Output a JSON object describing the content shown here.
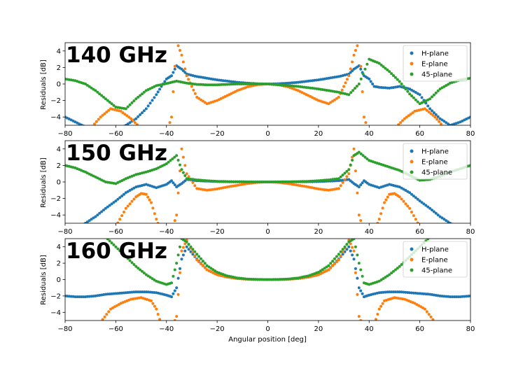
{
  "chart_data": [
    {
      "type": "scatter",
      "title": "140 GHz",
      "ylabel": "Residuals [dB]",
      "xlabel": "",
      "xlim": [
        -80,
        80
      ],
      "ylim": [
        -5,
        5
      ],
      "xticks": [
        "−80",
        "−60",
        "−40",
        "−20",
        "0",
        "20",
        "40",
        "60",
        "80"
      ],
      "yticks": [
        "−4",
        "−2",
        "0",
        "2",
        "4"
      ],
      "legend_position": "top-right",
      "series": [
        {
          "name": "H-plane",
          "color": "#1f77b4",
          "x": [
            -80,
            -76,
            -72,
            -68,
            -64,
            -60,
            -56,
            -52,
            -48,
            -44,
            -42,
            -40,
            -38,
            -36,
            -34,
            -32,
            -28,
            -24,
            -20,
            -16,
            -12,
            -8,
            -4,
            0,
            4,
            8,
            12,
            16,
            20,
            24,
            28,
            32,
            34,
            36,
            38,
            40,
            42,
            44,
            48,
            52,
            56,
            60,
            64,
            68,
            72,
            76,
            80
          ],
          "y": [
            -4,
            -4.6,
            -5.2,
            -5.6,
            -5.8,
            -5.6,
            -5.0,
            -4.2,
            -3.0,
            -1.3,
            -0.3,
            0.6,
            1.0,
            2.2,
            1.8,
            1.2,
            0.9,
            0.7,
            0.5,
            0.35,
            0.2,
            0.1,
            0.03,
            0,
            0.03,
            0.1,
            0.2,
            0.35,
            0.5,
            0.7,
            0.9,
            1.2,
            1.8,
            2.2,
            1.0,
            0.6,
            -0.3,
            -0.4,
            -0.5,
            -0.3,
            -0.6,
            -1.3,
            -3.0,
            -4.2,
            -5.0,
            -4.6,
            -4.0
          ]
        },
        {
          "name": "E-plane",
          "color": "#ff7f0e",
          "x": [
            -70,
            -66,
            -62,
            -58,
            -54,
            -50,
            -46,
            -44,
            -42,
            -40,
            -38,
            -36,
            -34,
            -32,
            -30,
            -28,
            -24,
            -20,
            -16,
            -12,
            -8,
            -4,
            0,
            4,
            8,
            12,
            16,
            20,
            24,
            28,
            30,
            32,
            34,
            36,
            38,
            40,
            42,
            44,
            46,
            50,
            54,
            58,
            62,
            66,
            70
          ],
          "y": [
            -5.4,
            -4.0,
            -3.0,
            -3.3,
            -4.2,
            -5.4,
            -6,
            -6,
            -6,
            -6,
            -4.0,
            5.2,
            3.5,
            1.0,
            -0.3,
            -1.6,
            -2.4,
            -2.0,
            -1.4,
            -0.8,
            -0.35,
            -0.08,
            0,
            -0.08,
            -0.35,
            -0.8,
            -1.4,
            -2.0,
            -2.4,
            -1.6,
            -0.3,
            1.0,
            3.5,
            5.2,
            -4.0,
            -6,
            -6,
            -6,
            -6,
            -5.4,
            -4.2,
            -3.3,
            -3.0,
            -4.0,
            -5.4
          ]
        },
        {
          "name": "45-plane",
          "color": "#2ca02c",
          "x": [
            -80,
            -76,
            -72,
            -68,
            -64,
            -60,
            -56,
            -52,
            -48,
            -44,
            -40,
            -36,
            -32,
            -28,
            -24,
            -20,
            -16,
            -12,
            -8,
            -4,
            0,
            4,
            8,
            12,
            16,
            20,
            24,
            28,
            32,
            36,
            40,
            44,
            48,
            52,
            56,
            60,
            64,
            68,
            72,
            76,
            80
          ],
          "y": [
            0.6,
            0.4,
            0,
            -0.8,
            -1.8,
            -2.8,
            -3.0,
            -1.8,
            -0.8,
            -0.2,
            0.05,
            0.35,
            0.1,
            -0.05,
            -0.1,
            -0.1,
            -0.05,
            0,
            0,
            0,
            0,
            -0.1,
            -0.2,
            -0.3,
            -0.45,
            -0.6,
            -0.8,
            -1.0,
            -1.3,
            0,
            3.0,
            2.5,
            1.5,
            0.3,
            -1.2,
            -2.4,
            -1.8,
            -0.6,
            0.1,
            0.5,
            0.7
          ]
        }
      ]
    },
    {
      "type": "scatter",
      "title": "150 GHz",
      "ylabel": "Residuals [dB]",
      "xlabel": "",
      "xlim": [
        -80,
        80
      ],
      "ylim": [
        -5,
        5
      ],
      "xticks": [
        "−80",
        "−60",
        "−40",
        "−20",
        "0",
        "20",
        "40",
        "60",
        "80"
      ],
      "yticks": [
        "−4",
        "−2",
        "0",
        "2",
        "4"
      ],
      "legend_position": "top-right",
      "series": [
        {
          "name": "H-plane",
          "color": "#1f77b4",
          "x": [
            -80,
            -76,
            -72,
            -68,
            -64,
            -60,
            -56,
            -52,
            -48,
            -44,
            -40,
            -38,
            -36,
            -34,
            -32,
            -28,
            -24,
            -20,
            -16,
            -12,
            -8,
            -4,
            0,
            4,
            8,
            12,
            16,
            20,
            24,
            28,
            32,
            34,
            36,
            38,
            40,
            44,
            48,
            52,
            56,
            60,
            64,
            68,
            72,
            76,
            80
          ],
          "y": [
            -6,
            -5.6,
            -5.0,
            -4.2,
            -3.2,
            -2.3,
            -1.3,
            -0.6,
            -0.3,
            -0.7,
            -0.3,
            0.15,
            -0.6,
            -0.2,
            0.3,
            0.15,
            0.1,
            0.05,
            0.03,
            0.02,
            0.01,
            0,
            0,
            0,
            0.01,
            0.02,
            0.03,
            0.05,
            0.1,
            0.15,
            0.3,
            -0.2,
            -0.6,
            0.15,
            -0.3,
            -0.7,
            -0.3,
            -0.6,
            -1.3,
            -2.3,
            -3.2,
            -4.2,
            -5.0,
            -5.6,
            -6
          ]
        },
        {
          "name": "E-plane",
          "color": "#ff7f0e",
          "x": [
            -60,
            -56,
            -52,
            -50,
            -48,
            -46,
            -44,
            -42,
            -40,
            -38,
            -36,
            -34,
            -32,
            -28,
            -24,
            -20,
            -16,
            -12,
            -8,
            -4,
            0,
            4,
            8,
            12,
            16,
            20,
            24,
            28,
            32,
            34,
            36,
            38,
            40,
            42,
            44,
            46,
            48,
            50,
            52,
            56,
            60
          ],
          "y": [
            -5.4,
            -3.2,
            -1.8,
            -1.4,
            -1.5,
            -2.5,
            -4.5,
            -6,
            -6,
            -6,
            -4.0,
            4.0,
            1.0,
            -0.8,
            -1.0,
            -0.85,
            -0.6,
            -0.4,
            -0.2,
            -0.05,
            0,
            -0.05,
            -0.2,
            -0.4,
            -0.6,
            -0.85,
            -1.0,
            -0.8,
            1.0,
            4.0,
            -4.0,
            -6,
            -6,
            -6,
            -4.5,
            -2.5,
            -1.5,
            -1.4,
            -1.8,
            -3.2,
            -5.4
          ]
        },
        {
          "name": "45-plane",
          "color": "#2ca02c",
          "x": [
            -80,
            -76,
            -72,
            -68,
            -64,
            -60,
            -56,
            -52,
            -48,
            -44,
            -40,
            -36,
            -34,
            -32,
            -28,
            -24,
            -20,
            -16,
            -12,
            -8,
            -4,
            0,
            4,
            8,
            12,
            16,
            20,
            24,
            28,
            32,
            34,
            36,
            40,
            44,
            48,
            52,
            56,
            60,
            64,
            68,
            72,
            76,
            80
          ],
          "y": [
            2.0,
            1.7,
            1.2,
            0.6,
            0.0,
            -0.2,
            0.4,
            0.9,
            1.2,
            1.6,
            2.2,
            3.2,
            1.5,
            0.4,
            0.25,
            0.15,
            0.08,
            0.04,
            0.02,
            0.01,
            0,
            0,
            0.01,
            0.02,
            0.04,
            0.08,
            0.15,
            0.25,
            0.4,
            1.5,
            3.2,
            3.6,
            2.6,
            2.2,
            1.8,
            1.4,
            0.8,
            0.2,
            0.3,
            0.7,
            1.2,
            1.6,
            2.0
          ]
        }
      ]
    },
    {
      "type": "scatter",
      "title": "160 GHz",
      "ylabel": "Residuals [dB]",
      "xlabel": "Angular position [deg]",
      "xlim": [
        -80,
        80
      ],
      "ylim": [
        -5,
        5
      ],
      "xticks": [
        "−80",
        "−60",
        "−40",
        "−20",
        "0",
        "20",
        "40",
        "60",
        "80"
      ],
      "yticks": [
        "−4",
        "−2",
        "0",
        "2",
        "4"
      ],
      "legend_position": "top-right",
      "series": [
        {
          "name": "H-plane",
          "color": "#1f77b4",
          "x": [
            -80,
            -76,
            -72,
            -68,
            -64,
            -60,
            -56,
            -52,
            -48,
            -44,
            -40,
            -38,
            -36,
            -34,
            -32,
            -28,
            -24,
            -20,
            -16,
            -12,
            -8,
            -4,
            0,
            4,
            8,
            12,
            16,
            20,
            24,
            28,
            32,
            34,
            36,
            38,
            40,
            44,
            48,
            52,
            56,
            60,
            64,
            68,
            72,
            76,
            80
          ],
          "y": [
            -2.0,
            -2.1,
            -2.1,
            -2.0,
            -1.8,
            -1.7,
            -1.6,
            -1.5,
            -1.5,
            -1.6,
            -1.9,
            -2.1,
            -1.0,
            2.5,
            4.0,
            2.5,
            1.2,
            0.6,
            0.3,
            0.15,
            0.05,
            0.01,
            0,
            0.01,
            0.05,
            0.15,
            0.3,
            0.6,
            1.2,
            2.5,
            4.0,
            2.5,
            -1.0,
            -2.1,
            -1.9,
            -1.6,
            -1.5,
            -1.5,
            -1.6,
            -1.7,
            -1.8,
            -2.0,
            -2.1,
            -2.1,
            -2.0
          ]
        },
        {
          "name": "E-plane",
          "color": "#ff7f0e",
          "x": [
            -66,
            -62,
            -58,
            -54,
            -50,
            -46,
            -44,
            -42,
            -40,
            -38,
            -36,
            -34,
            -32,
            -28,
            -24,
            -20,
            -16,
            -12,
            -8,
            -4,
            0,
            4,
            8,
            12,
            16,
            20,
            24,
            28,
            32,
            34,
            36,
            38,
            40,
            42,
            44,
            46,
            50,
            54,
            58,
            62,
            66
          ],
          "y": [
            -5.2,
            -3.6,
            -2.9,
            -2.4,
            -2.2,
            -2.6,
            -3.6,
            -5.5,
            -6,
            -6,
            -4.5,
            3.5,
            4.8,
            2.4,
            1.2,
            0.6,
            0.3,
            0.12,
            0.04,
            0.01,
            0,
            0.01,
            0.04,
            0.12,
            0.3,
            0.6,
            1.2,
            2.4,
            4.8,
            3.5,
            -4.5,
            -6,
            -6,
            -5.5,
            -3.6,
            -2.6,
            -2.2,
            -2.4,
            -2.9,
            -3.6,
            -5.2
          ]
        },
        {
          "name": "45-plane",
          "color": "#2ca02c",
          "x": [
            -80,
            -76,
            -72,
            -68,
            -64,
            -60,
            -56,
            -52,
            -48,
            -44,
            -40,
            -38,
            -36,
            -34,
            -32,
            -28,
            -24,
            -20,
            -16,
            -12,
            -8,
            -4,
            0,
            4,
            8,
            12,
            16,
            20,
            24,
            28,
            32,
            34,
            36,
            38,
            40,
            44,
            48,
            52,
            56,
            60,
            64,
            68,
            72,
            76,
            80
          ],
          "y": [
            6,
            6,
            6,
            6,
            5.2,
            4.0,
            2.8,
            1.6,
            0.6,
            -0.2,
            -0.6,
            -0.4,
            2.0,
            5.0,
            4.6,
            3.1,
            1.7,
            0.9,
            0.45,
            0.2,
            0.06,
            0.01,
            0,
            0.01,
            0.06,
            0.2,
            0.45,
            0.9,
            1.7,
            3.1,
            4.6,
            5.0,
            2.0,
            -0.4,
            -0.6,
            -0.2,
            0.6,
            1.6,
            2.8,
            4.0,
            5.2,
            6,
            6,
            6,
            6
          ]
        }
      ]
    }
  ]
}
